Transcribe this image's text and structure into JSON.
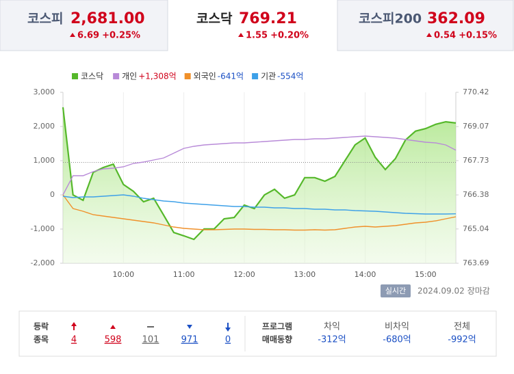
{
  "tabs": [
    {
      "name": "코스피",
      "value": "2,681.00",
      "change": "6.69",
      "rate": "+0.25%"
    },
    {
      "name": "코스닥",
      "value": "769.21",
      "change": "1.55",
      "rate": "+0.20%"
    },
    {
      "name": "코스피200",
      "value": "362.09",
      "change": "0.54",
      "rate": "+0.15%"
    }
  ],
  "chart_data": {
    "type": "line",
    "categories": [
      null,
      null,
      null,
      null,
      null,
      null,
      "10:00",
      null,
      null,
      null,
      null,
      null,
      "11:00",
      null,
      null,
      null,
      null,
      null,
      "12:00",
      null,
      null,
      null,
      null,
      null,
      "13:00",
      null,
      null,
      null,
      null,
      null,
      "14:00",
      null,
      null,
      null,
      null,
      null,
      "15:00",
      null,
      null,
      null
    ],
    "series": [
      {
        "name": "코스닥",
        "color": "#55b82a",
        "axis": "y2",
        "area": true,
        "values": [
          769.83,
          766.38,
          766.17,
          767.27,
          767.46,
          767.59,
          766.79,
          766.52,
          766.11,
          766.25,
          765.58,
          764.9,
          764.77,
          764.63,
          765.04,
          765.04,
          765.44,
          765.49,
          765.98,
          765.84,
          766.38,
          766.6,
          766.25,
          766.38,
          767.06,
          767.06,
          766.92,
          767.11,
          767.73,
          768.35,
          768.62,
          767.86,
          767.38,
          767.81,
          768.54,
          768.89,
          768.99,
          769.16,
          769.26,
          769.21
        ]
      },
      {
        "name": "개인",
        "color": "#b88ad8",
        "legend_value": "+1,308억",
        "legend_value_color": "#d0021b",
        "values": [
          0,
          560,
          560,
          680,
          760,
          780,
          820,
          920,
          960,
          1020,
          1080,
          1220,
          1360,
          1420,
          1460,
          1480,
          1500,
          1520,
          1520,
          1540,
          1560,
          1580,
          1600,
          1620,
          1620,
          1640,
          1640,
          1660,
          1680,
          1700,
          1720,
          1700,
          1680,
          1660,
          1620,
          1580,
          1540,
          1520,
          1460,
          1308
        ]
      },
      {
        "name": "외국인",
        "color": "#f0902a",
        "legend_value": "-641억",
        "legend_value_color": "#1a4fc4",
        "values": [
          0,
          -400,
          -480,
          -580,
          -620,
          -660,
          -700,
          -740,
          -780,
          -820,
          -880,
          -940,
          -980,
          -1000,
          -1020,
          -1020,
          -1010,
          -1000,
          -1000,
          -1010,
          -1010,
          -1020,
          -1020,
          -1030,
          -1030,
          -1020,
          -1030,
          -1020,
          -980,
          -940,
          -920,
          -940,
          -920,
          -900,
          -860,
          -820,
          -800,
          -760,
          -700,
          -641
        ]
      },
      {
        "name": "기관",
        "color": "#3da0e8",
        "legend_value": "-554억",
        "legend_value_color": "#1a4fc4",
        "values": [
          -40,
          -80,
          -60,
          -60,
          -40,
          -20,
          0,
          -40,
          -100,
          -140,
          -180,
          -200,
          -240,
          -260,
          -280,
          -300,
          -320,
          -340,
          -340,
          -360,
          -360,
          -380,
          -380,
          -400,
          -400,
          -420,
          -420,
          -440,
          -440,
          -460,
          -470,
          -480,
          -500,
          -520,
          -540,
          -550,
          -560,
          -560,
          -560,
          -554
        ]
      }
    ],
    "ylim": [
      -2000,
      3000
    ],
    "yticks": [
      {
        "value": 3000,
        "label": "3,000"
      },
      {
        "value": 2000,
        "label": "2,000"
      },
      {
        "value": 1000,
        "label": "1,000"
      },
      0,
      {
        "value": -1000,
        "label": "-1,000"
      },
      {
        "value": -2000,
        "label": "-2,000"
      }
    ],
    "y2lim": [
      763.69,
      770.42
    ],
    "y2ticks": [
      770.42,
      769.07,
      767.73,
      766.38,
      765.04,
      763.69
    ],
    "reference_line": 767.66,
    "grid": true
  },
  "status": {
    "badge": "실시간",
    "date": "2024.09.02",
    "state": "장마감"
  },
  "breadth": {
    "label_top": "등락",
    "label_bottom": "종목",
    "items": [
      {
        "count": 4,
        "color": "#d0021b"
      },
      {
        "count": 598,
        "color": "#d0021b"
      },
      {
        "count": 101,
        "color": "#666666"
      },
      {
        "count": 971,
        "color": "#1a4fc4"
      },
      {
        "count": 0,
        "color": "#1a4fc4"
      }
    ]
  },
  "program": {
    "label_top": "프로그램",
    "label_bottom": "매매동향",
    "columns": [
      {
        "name": "차익",
        "value": "-312억"
      },
      {
        "name": "비차익",
        "value": "-680억"
      },
      {
        "name": "전체",
        "value": "-992억"
      }
    ]
  }
}
